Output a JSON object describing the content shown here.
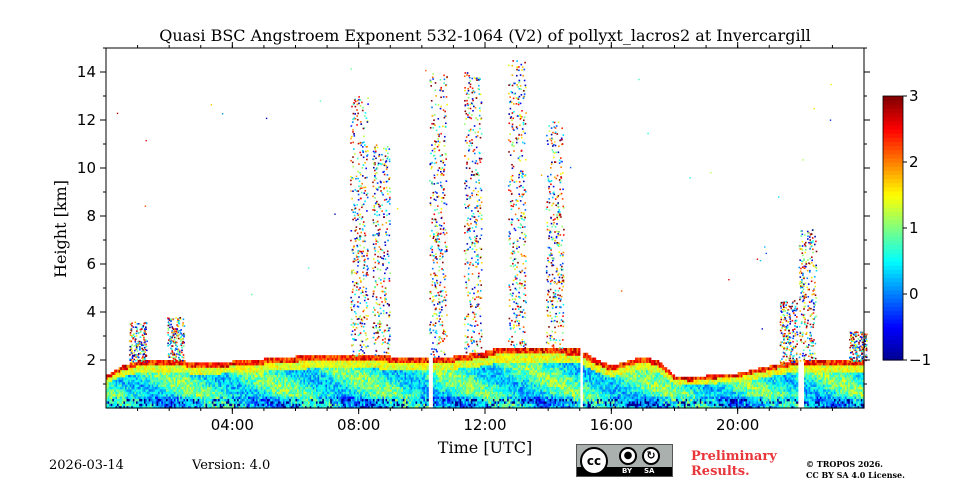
{
  "chart_data": {
    "type": "heatmap",
    "title": "Quasi BSC Angstroem Exponent 532-1064 (V2) of pollyxt_lacros2 at Invercargill",
    "xlabel": "Time [UTC]",
    "ylabel": "Height [km]",
    "xlim_hours": [
      0,
      24
    ],
    "ylim_km": [
      0,
      15
    ],
    "x_ticks": [
      {
        "value": 4,
        "label": "04:00"
      },
      {
        "value": 8,
        "label": "08:00"
      },
      {
        "value": 12,
        "label": "12:00"
      },
      {
        "value": 16,
        "label": "16:00"
      },
      {
        "value": 20,
        "label": "20:00"
      }
    ],
    "y_ticks": [
      {
        "value": 2,
        "label": "2"
      },
      {
        "value": 4,
        "label": "4"
      },
      {
        "value": 6,
        "label": "6"
      },
      {
        "value": 8,
        "label": "8"
      },
      {
        "value": 10,
        "label": "10"
      },
      {
        "value": 12,
        "label": "12"
      },
      {
        "value": 14,
        "label": "14"
      }
    ],
    "colorbar": {
      "range": [
        -1,
        3
      ],
      "ticks": [
        {
          "value": 3,
          "label": "3"
        },
        {
          "value": 2,
          "label": "2"
        },
        {
          "value": 1,
          "label": "1"
        },
        {
          "value": 0,
          "label": "0"
        },
        {
          "value": -1,
          "label": "−1"
        }
      ]
    },
    "boundary_layer_top_km": [
      [
        0.0,
        1.3
      ],
      [
        0.5,
        1.7
      ],
      [
        1.0,
        1.9
      ],
      [
        2.0,
        2.0
      ],
      [
        3.0,
        1.8
      ],
      [
        4.0,
        1.9
      ],
      [
        5.0,
        2.0
      ],
      [
        6.0,
        2.1
      ],
      [
        7.0,
        2.2
      ],
      [
        8.0,
        2.2
      ],
      [
        9.0,
        2.1
      ],
      [
        10.0,
        2.0
      ],
      [
        11.0,
        2.1
      ],
      [
        12.0,
        2.3
      ],
      [
        12.5,
        2.5
      ],
      [
        13.0,
        2.5
      ],
      [
        14.0,
        2.5
      ],
      [
        15.0,
        2.4
      ],
      [
        15.5,
        2.0
      ],
      [
        16.0,
        1.7
      ],
      [
        16.5,
        1.9
      ],
      [
        17.0,
        2.1
      ],
      [
        17.5,
        1.9
      ],
      [
        18.0,
        1.3
      ],
      [
        18.5,
        1.2
      ],
      [
        19.0,
        1.3
      ],
      [
        20.0,
        1.4
      ],
      [
        21.0,
        1.7
      ],
      [
        22.0,
        2.0
      ],
      [
        23.0,
        1.9
      ],
      [
        24.0,
        2.0
      ]
    ],
    "cloud_plume_hours": [
      1.0,
      2.2,
      8.0,
      8.7,
      10.5,
      11.6,
      13.0,
      14.2,
      21.6,
      22.2,
      23.8
    ],
    "data_gaps_hours": [
      10.2,
      15.0,
      21.9,
      22.1
    ]
  },
  "footer": {
    "date": "2026-03-14",
    "version": "Version: 4.0",
    "preliminary_line1": "Preliminary",
    "preliminary_line2": "Results.",
    "copyright_line1": "© TROPOS 2026.",
    "copyright_line2": "CC BY SA 4.0 License.",
    "license_by": "BY",
    "license_sa": "SA",
    "license_cc": "cc"
  }
}
